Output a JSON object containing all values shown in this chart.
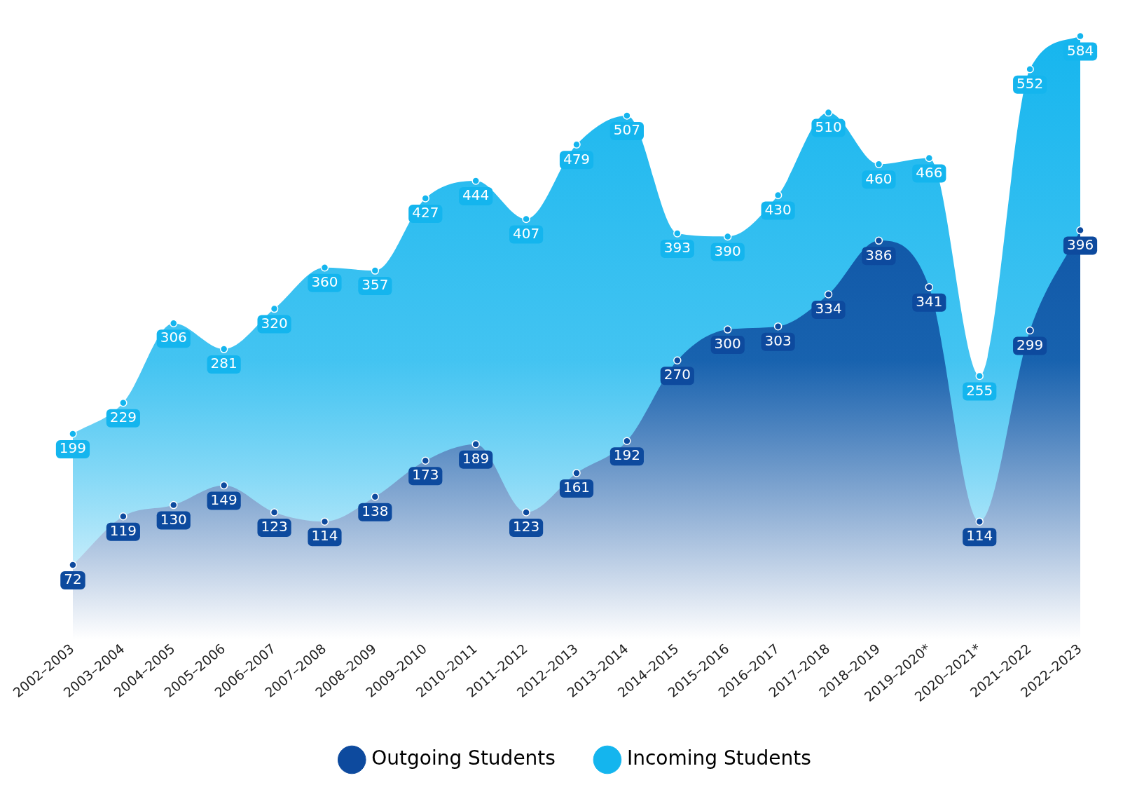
{
  "chart_data": {
    "type": "area",
    "categories": [
      "2002–2003",
      "2003–2004",
      "2004–2005",
      "2005–2006",
      "2006–2007",
      "2007–2008",
      "2008–2009",
      "2009–2010",
      "2010–2011",
      "2011–2012",
      "2012–2013",
      "2013–2014",
      "2014–2015",
      "2015–2016",
      "2016–2017",
      "2017–2018",
      "2018–2019",
      "2019–2020*",
      "2020–2021*",
      "2021–2022",
      "2022–2023"
    ],
    "series": [
      {
        "name": "Outgoing Students",
        "color": "#0d4a9e",
        "values": [
          72,
          119,
          130,
          149,
          123,
          114,
          138,
          173,
          189,
          123,
          161,
          192,
          270,
          300,
          303,
          334,
          386,
          341,
          114,
          299,
          396
        ]
      },
      {
        "name": "Incoming Students",
        "color": "#14b5ee",
        "values": [
          199,
          229,
          306,
          281,
          320,
          360,
          357,
          427,
          444,
          407,
          479,
          507,
          393,
          390,
          430,
          510,
          460,
          466,
          255,
          552,
          584
        ]
      }
    ],
    "data_labels": true,
    "legend": "bottom",
    "marker": "circle",
    "grid": false
  }
}
